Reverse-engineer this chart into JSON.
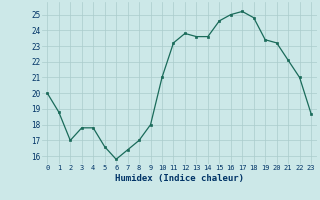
{
  "x": [
    0,
    1,
    2,
    3,
    4,
    5,
    6,
    7,
    8,
    9,
    10,
    11,
    12,
    13,
    14,
    15,
    16,
    17,
    18,
    19,
    20,
    21,
    22,
    23
  ],
  "y": [
    20,
    18.8,
    17.0,
    17.8,
    17.8,
    16.6,
    15.8,
    16.4,
    17.0,
    18.0,
    21.0,
    23.2,
    23.8,
    23.6,
    23.6,
    24.6,
    25.0,
    25.2,
    24.8,
    23.4,
    23.2,
    22.1,
    21.0,
    18.7
  ],
  "xlabel": "Humidex (Indice chaleur)",
  "xlim": [
    -0.5,
    23.5
  ],
  "ylim": [
    15.5,
    25.8
  ],
  "yticks": [
    16,
    17,
    18,
    19,
    20,
    21,
    22,
    23,
    24,
    25
  ],
  "xticks": [
    0,
    1,
    2,
    3,
    4,
    5,
    6,
    7,
    8,
    9,
    10,
    11,
    12,
    13,
    14,
    15,
    16,
    17,
    18,
    19,
    20,
    21,
    22,
    23
  ],
  "line_color": "#1a6b5a",
  "marker_color": "#1a6b5a",
  "bg_color": "#cce8e8",
  "grid_color": "#aacccc",
  "xlabel_color": "#003366",
  "tick_label_color": "#003366"
}
